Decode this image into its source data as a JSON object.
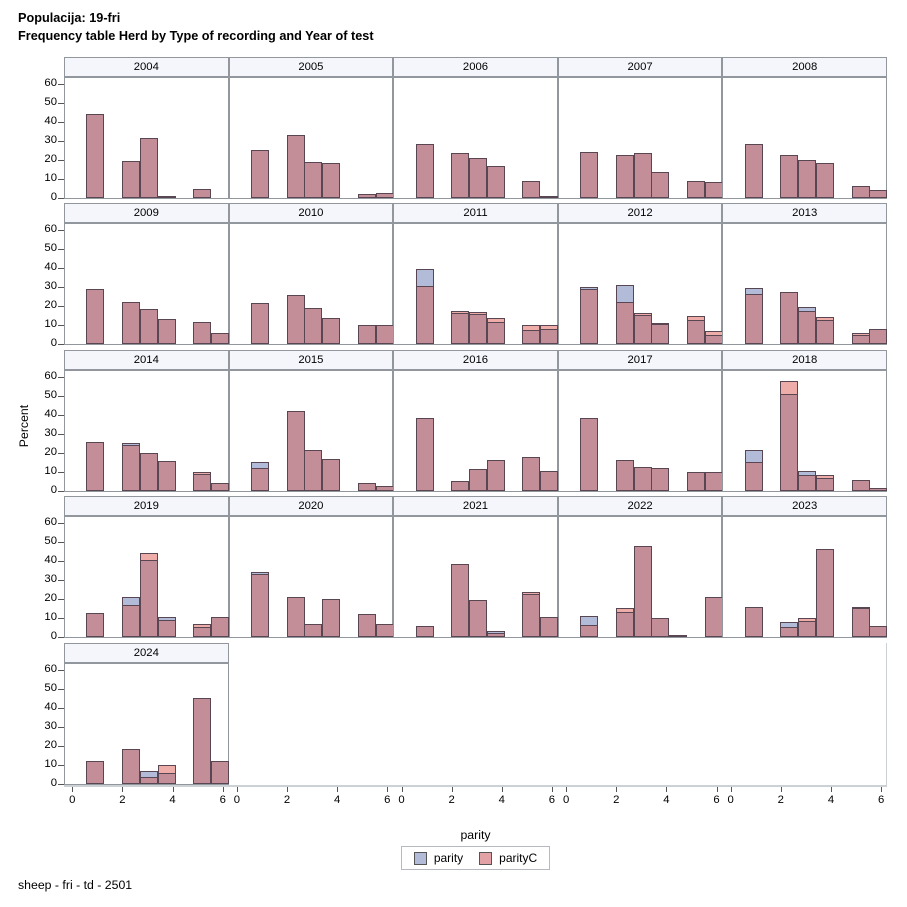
{
  "title": {
    "line1": "Populacija: 19-fri",
    "line2": "Frequency table Herd by Type of recording and Year of test"
  },
  "footer": "sheep - fri - td - 2501",
  "axes": {
    "y_label": "Percent",
    "x_label": "parity",
    "y_ticks": [
      0,
      10,
      20,
      30,
      40,
      50,
      60
    ],
    "x_ticks": [
      0,
      2,
      4,
      6
    ]
  },
  "legend": {
    "items": [
      {
        "label": "parity",
        "color": "#b2bbd8"
      },
      {
        "label": "parityC",
        "color": "#e2a2a6"
      }
    ]
  },
  "colors": {
    "overlap": "#c48e98",
    "parity_only": "#b2bbd8",
    "parityC_only": "#eeada9",
    "bar_border": "#584652",
    "panel_border": "#91979d",
    "header_bg": "#f4f6fb",
    "axis_line": "#ccd1d6"
  },
  "chart_data": {
    "type": "bar",
    "title": "Frequency table Herd by Type of recording and Year of test",
    "subtitle": "Populacija: 19-fri",
    "xlabel": "parity",
    "ylabel": "Percent",
    "x_range": [
      0,
      6.6
    ],
    "y_range": [
      0,
      64
    ],
    "grid": false,
    "legend_position": "bottom",
    "bar_width": 0.71,
    "series_names": [
      "parity",
      "parityC"
    ],
    "bar_format": [
      "x",
      "parity_pct",
      "parityC_pct"
    ],
    "panels": [
      {
        "year": "2004",
        "bars": [
          [
            0.88,
            44,
            44
          ],
          [
            2.3,
            19.5,
            19.5
          ],
          [
            3.01,
            31.5,
            31.5
          ],
          [
            3.72,
            0.4,
            0.4
          ],
          [
            5.14,
            4.7,
            4.7
          ]
        ]
      },
      {
        "year": "2005",
        "bars": [
          [
            0.88,
            25,
            25
          ],
          [
            2.3,
            33,
            33
          ],
          [
            3.01,
            19,
            19
          ],
          [
            3.72,
            18.5,
            18.5
          ],
          [
            5.14,
            2,
            2
          ],
          [
            5.85,
            2.7,
            2.7
          ]
        ]
      },
      {
        "year": "2006",
        "bars": [
          [
            0.88,
            28.5,
            28.5
          ],
          [
            2.3,
            23.5,
            23.5
          ],
          [
            3.01,
            21,
            21
          ],
          [
            3.72,
            17,
            17
          ],
          [
            5.14,
            9,
            9
          ],
          [
            5.85,
            1,
            1
          ]
        ]
      },
      {
        "year": "2007",
        "bars": [
          [
            0.88,
            24,
            24
          ],
          [
            2.3,
            22.5,
            22.5
          ],
          [
            3.01,
            23.5,
            23.5
          ],
          [
            3.72,
            13.5,
            13.5
          ],
          [
            5.14,
            8.7,
            8.7
          ],
          [
            5.85,
            8.5,
            8.5
          ]
        ]
      },
      {
        "year": "2008",
        "bars": [
          [
            0.88,
            28.5,
            28.5
          ],
          [
            2.3,
            22.5,
            22.5
          ],
          [
            3.01,
            20,
            20
          ],
          [
            3.72,
            18.5,
            18.5
          ],
          [
            5.14,
            6.5,
            6.5
          ],
          [
            5.85,
            4,
            4
          ]
        ]
      },
      {
        "year": "2009",
        "bars": [
          [
            0.88,
            29,
            29
          ],
          [
            2.3,
            22,
            22
          ],
          [
            3.01,
            18.5,
            18.5
          ],
          [
            3.72,
            13,
            13
          ],
          [
            5.14,
            11.5,
            11.5
          ],
          [
            5.85,
            6,
            6
          ]
        ]
      },
      {
        "year": "2010",
        "bars": [
          [
            0.88,
            21.5,
            21.5
          ],
          [
            2.3,
            26,
            26
          ],
          [
            3.01,
            19,
            19
          ],
          [
            3.72,
            13.5,
            13.5
          ],
          [
            5.14,
            10,
            10
          ],
          [
            5.85,
            10,
            10
          ]
        ]
      },
      {
        "year": "2011",
        "bars": [
          [
            0.88,
            39.5,
            30.5
          ],
          [
            2.3,
            16.5,
            17.5
          ],
          [
            3.01,
            16,
            17
          ],
          [
            3.72,
            11.5,
            13.5
          ],
          [
            5.14,
            7.5,
            10
          ],
          [
            5.85,
            8,
            10
          ]
        ]
      },
      {
        "year": "2012",
        "bars": [
          [
            0.88,
            30,
            29
          ],
          [
            2.3,
            31,
            22
          ],
          [
            3.01,
            15.5,
            16.5
          ],
          [
            3.72,
            10.5,
            11
          ],
          [
            5.14,
            12.5,
            14.5
          ],
          [
            5.85,
            4.5,
            7
          ]
        ]
      },
      {
        "year": "2013",
        "bars": [
          [
            0.88,
            29.5,
            26.5
          ],
          [
            2.3,
            27.5,
            27.5
          ],
          [
            3.01,
            19.5,
            17.5
          ],
          [
            3.72,
            12.5,
            14
          ],
          [
            5.14,
            4.7,
            6
          ],
          [
            5.85,
            8,
            8
          ]
        ]
      },
      {
        "year": "2014",
        "bars": [
          [
            0.88,
            26,
            26
          ],
          [
            2.3,
            25,
            24
          ],
          [
            3.01,
            20,
            20
          ],
          [
            3.72,
            15.8,
            15.8
          ],
          [
            5.14,
            9,
            10
          ],
          [
            5.85,
            4.4,
            4.4
          ]
        ]
      },
      {
        "year": "2015",
        "bars": [
          [
            0.88,
            15,
            12
          ],
          [
            2.3,
            42,
            42
          ],
          [
            3.01,
            21.5,
            21.5
          ],
          [
            3.72,
            17,
            17
          ],
          [
            5.14,
            4,
            4
          ],
          [
            5.85,
            2.5,
            2.5
          ]
        ]
      },
      {
        "year": "2016",
        "bars": [
          [
            0.88,
            38.5,
            38.5
          ],
          [
            2.3,
            5,
            5
          ],
          [
            3.01,
            11.5,
            11.5
          ],
          [
            3.72,
            16.5,
            16.5
          ],
          [
            5.14,
            18,
            18
          ],
          [
            5.85,
            10.5,
            10.5
          ]
        ]
      },
      {
        "year": "2017",
        "bars": [
          [
            0.88,
            38.5,
            38.5
          ],
          [
            2.3,
            16.5,
            16.5
          ],
          [
            3.01,
            12.5,
            12.5
          ],
          [
            3.72,
            12,
            12
          ],
          [
            5.14,
            10,
            10
          ],
          [
            5.85,
            10,
            10
          ]
        ]
      },
      {
        "year": "2018",
        "bars": [
          [
            0.88,
            21.5,
            15.5
          ],
          [
            2.3,
            51,
            58
          ],
          [
            3.01,
            10.5,
            8.5
          ],
          [
            3.72,
            7,
            8.5
          ],
          [
            5.14,
            6,
            6
          ],
          [
            5.85,
            1.5,
            1.5
          ]
        ]
      },
      {
        "year": "2019",
        "bars": [
          [
            0.88,
            12.5,
            12.5
          ],
          [
            2.3,
            21,
            17
          ],
          [
            3.01,
            40.5,
            44
          ],
          [
            3.72,
            10.5,
            9
          ],
          [
            5.14,
            5.5,
            7
          ],
          [
            5.85,
            10.5,
            10.5
          ]
        ]
      },
      {
        "year": "2020",
        "bars": [
          [
            0.88,
            34,
            33
          ],
          [
            2.3,
            21,
            21
          ],
          [
            3.01,
            7,
            7
          ],
          [
            3.72,
            20,
            20
          ],
          [
            5.14,
            12,
            12
          ],
          [
            5.85,
            7,
            7
          ]
        ]
      },
      {
        "year": "2021",
        "bars": [
          [
            0.88,
            6,
            6
          ],
          [
            2.3,
            38.5,
            38.5
          ],
          [
            3.01,
            19.5,
            19.5
          ],
          [
            3.72,
            3,
            2
          ],
          [
            5.14,
            22.5,
            23.5
          ],
          [
            5.85,
            10.5,
            10.5
          ]
        ]
      },
      {
        "year": "2022",
        "bars": [
          [
            0.88,
            11,
            6.5
          ],
          [
            2.3,
            13,
            15
          ],
          [
            3.01,
            48,
            48
          ],
          [
            3.72,
            10,
            10
          ],
          [
            4.43,
            0.5,
            0.5
          ],
          [
            5.85,
            21,
            21
          ]
        ]
      },
      {
        "year": "2023",
        "bars": [
          [
            0.88,
            16,
            16
          ],
          [
            2.3,
            8,
            5
          ],
          [
            3.01,
            8.5,
            10
          ],
          [
            3.72,
            46.5,
            46.5
          ],
          [
            5.14,
            15.5,
            16
          ],
          [
            5.85,
            6,
            6
          ]
        ]
      },
      {
        "year": "2024",
        "bars": [
          [
            0.88,
            12,
            12
          ],
          [
            2.3,
            18.5,
            18.5
          ],
          [
            3.01,
            7,
            3.5
          ],
          [
            3.72,
            6,
            10
          ],
          [
            5.14,
            45,
            45
          ],
          [
            5.85,
            12,
            12
          ]
        ]
      }
    ]
  }
}
